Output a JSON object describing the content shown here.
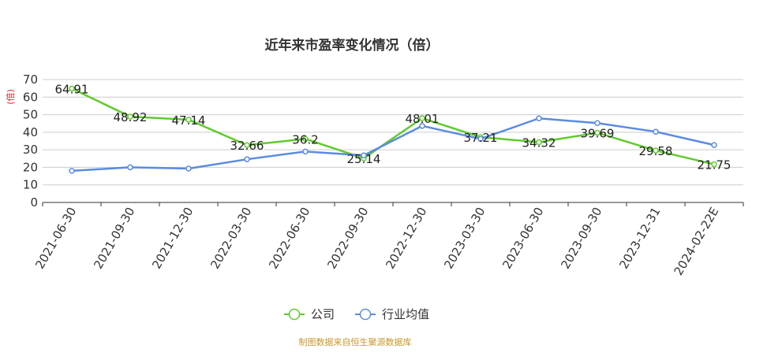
{
  "chart_data": {
    "type": "line",
    "title": "近年来市盈率变化情况（倍）",
    "ylabel": "(倍)",
    "xlabel": "",
    "ylim": [
      0,
      70
    ],
    "yticks": [
      0,
      10,
      20,
      30,
      40,
      50,
      60,
      70
    ],
    "grid": true,
    "legend_position": "bottom",
    "categories": [
      "2021-06-30",
      "2021-09-30",
      "2021-12-30",
      "2022-03-30",
      "2022-06-30",
      "2022-09-30",
      "2022-12-30",
      "2023-03-30",
      "2023-06-30",
      "2023-09-30",
      "2023-12-31",
      "2024-02-22E"
    ],
    "series": [
      {
        "name": "公司",
        "color": "#5fcb2c",
        "values": [
          64.91,
          48.92,
          47.14,
          32.66,
          36.2,
          25.14,
          48.01,
          37.21,
          34.32,
          39.69,
          29.58,
          21.75
        ],
        "labels": [
          "64.91",
          "48.92",
          "47.14",
          "32.66",
          "36.2",
          "25.14",
          "48.01",
          "37.21",
          "34.32",
          "39.69",
          "29.58",
          "21.75"
        ]
      },
      {
        "name": "行业均值",
        "color": "#5b8bdf",
        "values": [
          18,
          20,
          19.3,
          24.6,
          29,
          26.8,
          43.6,
          36.2,
          47.9,
          45.2,
          40.3,
          32.7
        ]
      }
    ],
    "source": "制图数据来自恒生聚源数据库"
  }
}
